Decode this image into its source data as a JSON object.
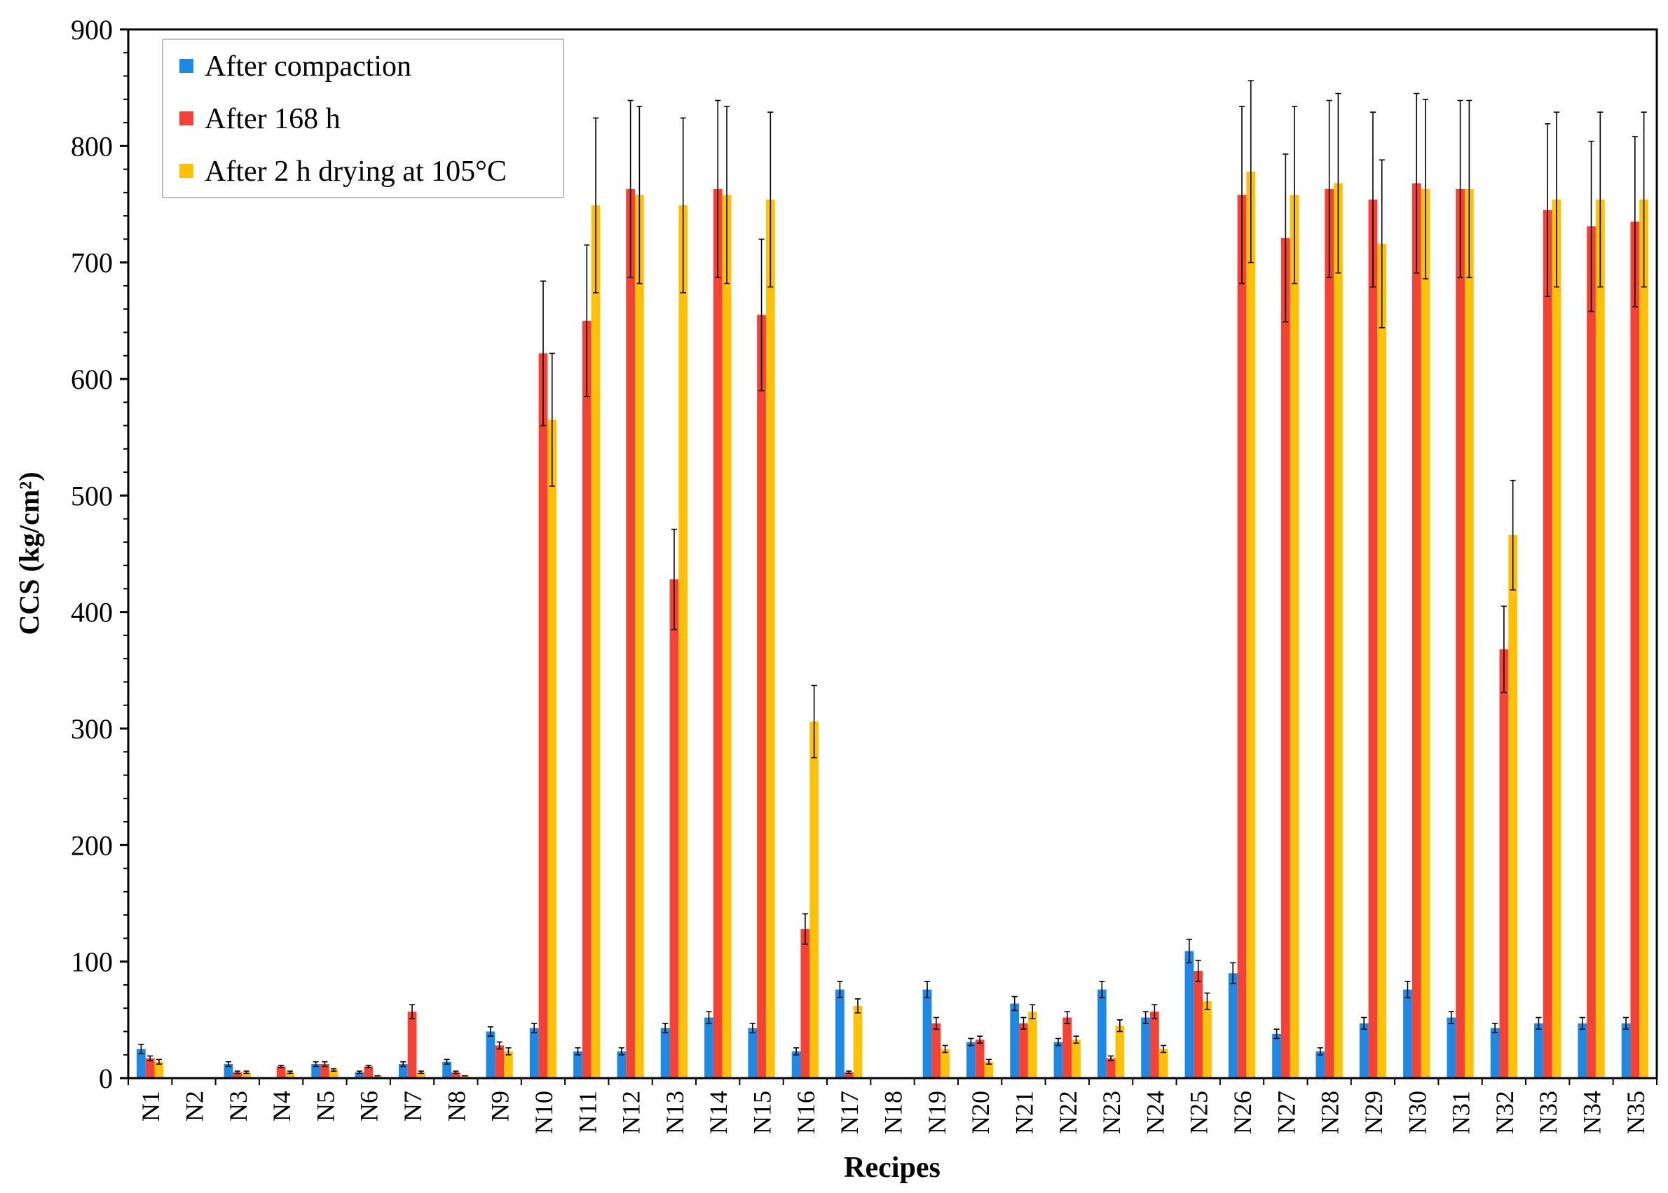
{
  "chart_data": {
    "type": "bar",
    "title": "",
    "xlabel": "Recipes",
    "ylabel": "CCS (kg/cm²)",
    "ylim": [
      0,
      900
    ],
    "yticks": [
      0,
      100,
      200,
      300,
      400,
      500,
      600,
      700,
      800,
      900
    ],
    "grid": false,
    "legend_position": "top-left",
    "categories": [
      "N1",
      "N2",
      "N3",
      "N4",
      "N5",
      "N6",
      "N7",
      "N8",
      "N9",
      "N10",
      "N11",
      "N12",
      "N13",
      "N14",
      "N15",
      "N16",
      "N17",
      "N18",
      "N19",
      "N20",
      "N21",
      "N22",
      "N23",
      "N24",
      "N25",
      "N26",
      "N27",
      "N28",
      "N29",
      "N30",
      "N31",
      "N32",
      "N33",
      "N34",
      "N35"
    ],
    "series": [
      {
        "name": "After compaction",
        "color": "#1e88e5",
        "values": [
          25,
          0,
          12,
          0,
          12,
          5,
          12,
          14,
          40,
          43,
          23,
          23,
          43,
          52,
          43,
          23,
          76,
          0,
          76,
          31,
          64,
          31,
          76,
          52,
          109,
          90,
          38,
          23,
          47,
          76,
          52,
          43,
          47,
          47,
          47
        ],
        "errors": [
          4,
          0,
          2,
          0,
          2,
          1,
          2,
          2,
          4,
          4,
          3,
          3,
          4,
          5,
          4,
          3,
          7,
          0,
          7,
          3,
          6,
          3,
          7,
          5,
          10,
          9,
          4,
          3,
          5,
          7,
          5,
          4,
          5,
          5,
          5
        ]
      },
      {
        "name": "After 168 h",
        "color": "#f44336",
        "values": [
          17,
          0,
          5,
          10,
          12,
          10,
          57,
          5,
          28,
          622,
          650,
          763,
          428,
          763,
          655,
          128,
          5,
          0,
          47,
          33,
          47,
          52,
          17,
          57,
          92,
          758,
          721,
          763,
          754,
          768,
          763,
          368,
          745,
          731,
          735
        ],
        "errors": [
          2,
          0,
          1,
          1,
          2,
          1,
          6,
          1,
          3,
          62,
          65,
          76,
          43,
          76,
          65,
          13,
          1,
          0,
          5,
          3,
          5,
          5,
          2,
          6,
          9,
          76,
          72,
          76,
          75,
          77,
          76,
          37,
          74,
          73,
          73
        ]
      },
      {
        "name": "After 2 h drying at 105°C",
        "color": "#ffc107",
        "values": [
          14,
          0,
          5,
          5,
          7,
          2,
          5,
          2,
          23,
          565,
          749,
          758,
          749,
          758,
          754,
          306,
          62,
          0,
          25,
          14,
          57,
          33,
          45,
          25,
          66,
          778,
          758,
          768,
          716,
          763,
          763,
          466,
          754,
          754,
          754
        ],
        "errors": [
          2,
          0,
          1,
          1,
          1,
          0,
          1,
          0,
          3,
          57,
          75,
          76,
          75,
          76,
          75,
          31,
          6,
          0,
          3,
          2,
          6,
          3,
          5,
          3,
          7,
          78,
          76,
          77,
          72,
          77,
          76,
          47,
          75,
          75,
          75
        ]
      }
    ]
  }
}
